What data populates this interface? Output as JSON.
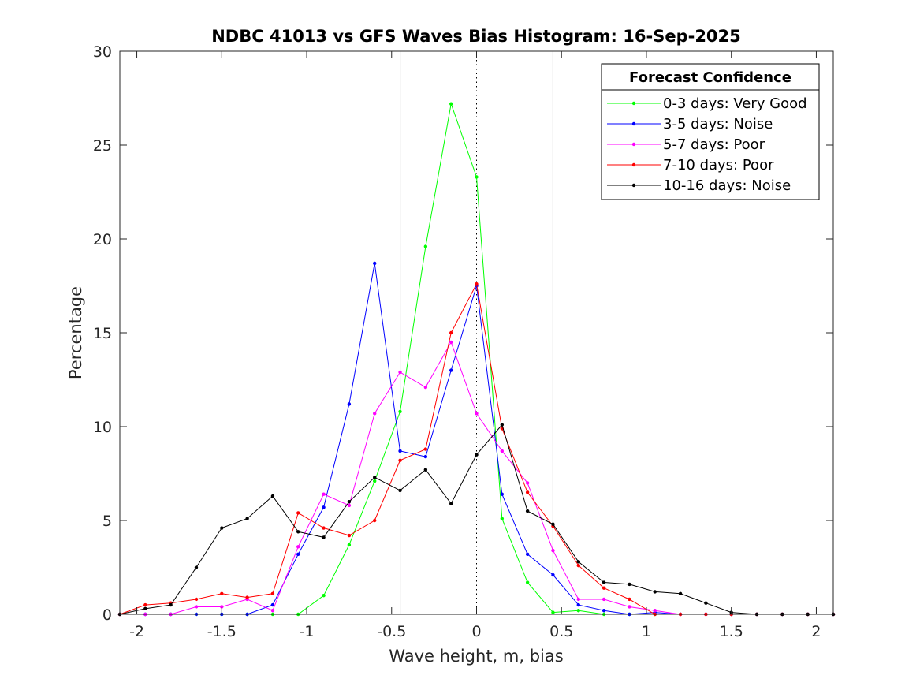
{
  "chart_data": {
    "type": "line",
    "title": "NDBC 41013 vs GFS Waves Bias Histogram: 16-Sep-2025",
    "xlabel": "Wave height, m, bias",
    "ylabel": "Percentage",
    "xlim": [
      -2.1,
      2.1
    ],
    "ylim": [
      0,
      30
    ],
    "xticks": [
      -2,
      -1.5,
      -1,
      -0.5,
      0,
      0.5,
      1,
      1.5,
      2
    ],
    "xtick_labels": [
      "-2",
      "-1.5",
      "-1",
      "-0.5",
      "0",
      "0.5",
      "1",
      "1.5",
      "2"
    ],
    "yticks": [
      0,
      5,
      10,
      15,
      20,
      25,
      30
    ],
    "ytick_labels": [
      "0",
      "5",
      "10",
      "15",
      "20",
      "25",
      "30"
    ],
    "reference_lines": [
      {
        "x": -0.45,
        "style": "solid"
      },
      {
        "x": 0,
        "style": "dotted"
      },
      {
        "x": 0.45,
        "style": "solid"
      }
    ],
    "x": [
      -2.1,
      -1.95,
      -1.8,
      -1.65,
      -1.5,
      -1.35,
      -1.2,
      -1.05,
      -0.9,
      -0.75,
      -0.6,
      -0.45,
      -0.3,
      -0.15,
      0,
      0.15,
      0.3,
      0.45,
      0.6,
      0.75,
      0.9,
      1.05,
      1.2,
      1.35,
      1.5,
      1.65,
      1.8,
      1.95,
      2.1
    ],
    "series": [
      {
        "name": "0-3 days: Very Good",
        "color": "#00ff00",
        "values": [
          0,
          0,
          0,
          0,
          0,
          0,
          0,
          0,
          1.0,
          3.7,
          7.1,
          10.8,
          19.6,
          27.2,
          23.3,
          5.1,
          1.7,
          0.1,
          0.2,
          0,
          0,
          0,
          0,
          0,
          0,
          0,
          0,
          0,
          0
        ]
      },
      {
        "name": "3-5 days: Noise",
        "color": "#0000ff",
        "values": [
          0,
          0,
          0,
          0,
          0,
          0,
          0.5,
          3.2,
          5.7,
          11.2,
          18.7,
          8.7,
          8.4,
          13.0,
          17.5,
          6.4,
          3.2,
          2.1,
          0.5,
          0.2,
          0,
          0.1,
          0,
          0,
          0,
          0,
          0,
          0,
          0
        ]
      },
      {
        "name": "5-7 days: Poor",
        "color": "#ff00ff",
        "values": [
          0,
          0,
          0,
          0.4,
          0.4,
          0.8,
          0.2,
          3.6,
          6.4,
          5.8,
          10.7,
          12.9,
          12.1,
          14.5,
          10.7,
          8.7,
          7.0,
          3.4,
          0.8,
          0.8,
          0.4,
          0.2,
          0,
          0,
          0,
          0,
          0,
          0,
          0
        ]
      },
      {
        "name": "7-10 days: Poor",
        "color": "#ff0000",
        "values": [
          0,
          0.5,
          0.6,
          0.8,
          1.1,
          0.9,
          1.1,
          5.4,
          4.6,
          4.2,
          5.0,
          8.2,
          8.8,
          15.0,
          17.6,
          9.9,
          6.5,
          4.7,
          2.6,
          1.4,
          0.8,
          0,
          0,
          0,
          0,
          0,
          0,
          0,
          0
        ]
      },
      {
        "name": "10-16 days: Noise",
        "color": "#000000",
        "values": [
          0,
          0.3,
          0.5,
          2.5,
          4.6,
          5.1,
          6.3,
          4.4,
          4.1,
          6.0,
          7.3,
          6.6,
          7.7,
          5.9,
          8.5,
          10.1,
          5.5,
          4.8,
          2.8,
          1.7,
          1.6,
          1.2,
          1.1,
          0.6,
          0.1,
          0,
          0,
          0,
          0
        ]
      }
    ],
    "legend": {
      "title": "Forecast Confidence",
      "location": "top-right"
    }
  }
}
